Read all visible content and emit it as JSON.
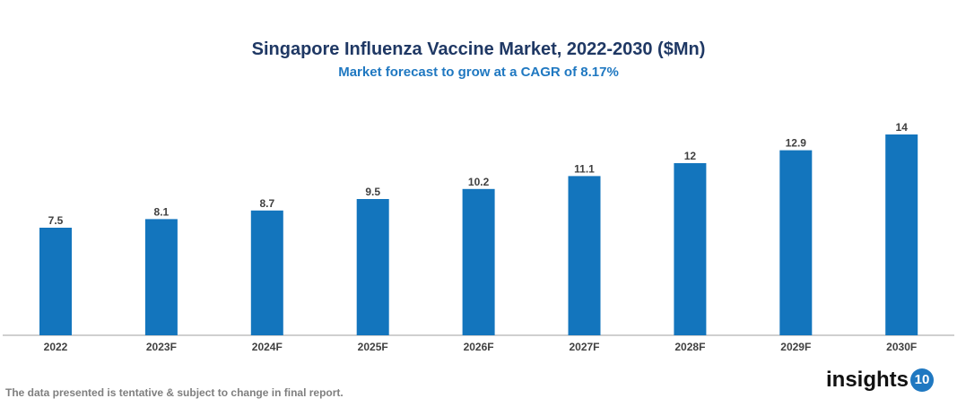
{
  "chart_data": {
    "type": "bar",
    "title": "Singapore Influenza Vaccine Market, 2022-2030 ($Mn)",
    "subtitle": "Market forecast to grow at a CAGR of 8.17%",
    "categories": [
      "2022",
      "2023F",
      "2024F",
      "2025F",
      "2026F",
      "2027F",
      "2028F",
      "2029F",
      "2030F"
    ],
    "values": [
      7.5,
      8.1,
      8.7,
      9.5,
      10.2,
      11.1,
      12,
      12.9,
      14
    ],
    "value_labels": [
      "7.5",
      "8.1",
      "8.7",
      "9.5",
      "10.2",
      "11.1",
      "12",
      "12.9",
      "14"
    ],
    "xlabel": "",
    "ylabel": "",
    "ylim": [
      0,
      14
    ],
    "grid": false,
    "bar_color": "#1375bd"
  },
  "footer": {
    "disclaimer": "The data presented is tentative & subject to change in final report."
  },
  "logo": {
    "text": "insights",
    "badge": "10"
  }
}
